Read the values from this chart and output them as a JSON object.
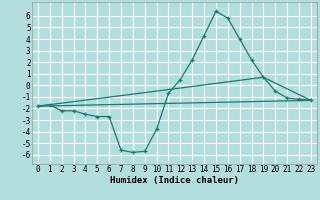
{
  "xlabel": "Humidex (Indice chaleur)",
  "bg_color": "#b2dede",
  "grid_color": "#ffffff",
  "line_color": "#1a7a6e",
  "xlim": [
    -0.5,
    23.5
  ],
  "ylim": [
    -6.8,
    7.2
  ],
  "xticks": [
    0,
    1,
    2,
    3,
    4,
    5,
    6,
    7,
    8,
    9,
    10,
    11,
    12,
    13,
    14,
    15,
    16,
    17,
    18,
    19,
    20,
    21,
    22,
    23
  ],
  "yticks": [
    -6,
    -5,
    -4,
    -3,
    -2,
    -1,
    0,
    1,
    2,
    3,
    4,
    5,
    6
  ],
  "line1_x": [
    0,
    1,
    2,
    3,
    4,
    5,
    6,
    7,
    8,
    9,
    10,
    11,
    12,
    13,
    14,
    15,
    16,
    17,
    18,
    19,
    20,
    21,
    22,
    23
  ],
  "line1_y": [
    -1.8,
    -1.7,
    -2.2,
    -2.2,
    -2.5,
    -2.7,
    -2.7,
    -5.6,
    -5.8,
    -5.7,
    -3.8,
    -0.7,
    0.5,
    2.2,
    4.3,
    6.4,
    5.8,
    4.0,
    2.2,
    0.7,
    -0.5,
    -1.1,
    -1.2,
    -1.3
  ],
  "line2_x": [
    0,
    23
  ],
  "line2_y": [
    -1.8,
    -1.3
  ],
  "line3_x": [
    0,
    10,
    19,
    23
  ],
  "line3_y": [
    -1.8,
    -0.5,
    0.7,
    -1.3
  ],
  "tick_fontsize": 5.5,
  "xlabel_fontsize": 6.5
}
